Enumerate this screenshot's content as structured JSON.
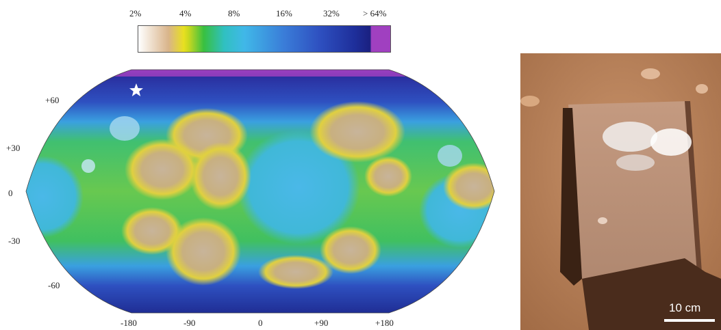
{
  "colorbar": {
    "ticks": [
      "2%",
      "4%",
      "8%",
      "16%",
      "32%",
      "> 64%"
    ]
  },
  "map": {
    "lat_labels": [
      "+60",
      "+30",
      "0",
      "-30",
      "-60"
    ],
    "lon_labels": [
      "-180",
      "-90",
      "0",
      "+90",
      "+180"
    ],
    "marker_icon": "star-icon"
  },
  "photo": {
    "scale_label": "10 cm"
  },
  "colors": {
    "low": "#d9b48a",
    "mid": "#38c040",
    "high": "#1e2e9a",
    "max": "#a040c0"
  }
}
